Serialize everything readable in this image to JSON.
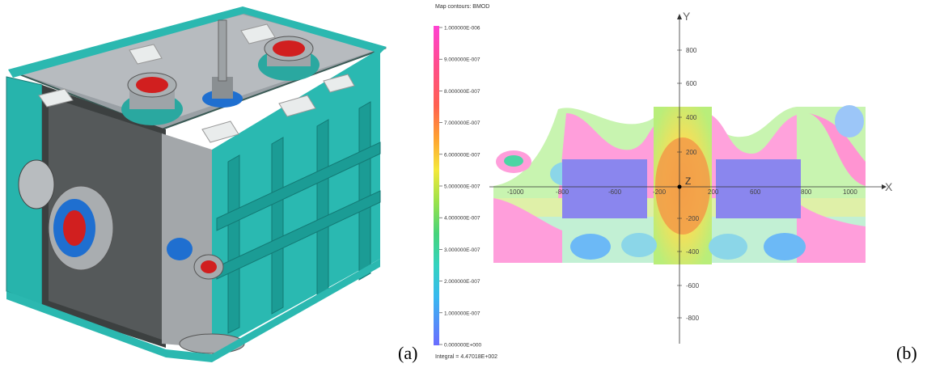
{
  "captions": {
    "a": "(a)",
    "b": "(b)"
  },
  "contour": {
    "title": "Map contours: BMOD",
    "integral": "Integral = 4.47018E+002",
    "scale_labels": [
      "1.000000E-006",
      "9.000000E-007",
      "8.000000E-007",
      "7.000000E-007",
      "6.000000E-007",
      "5.000000E-007",
      "4.000000E-007",
      "3.000000E-007",
      "2.000000E-007",
      "1.000000E-007",
      "0.000000E+000"
    ],
    "axis": {
      "x_name": "X",
      "y_name": "Y",
      "z_name": "Z",
      "x_ticks": [
        "-1000",
        "-800",
        "-600",
        "-200",
        "200",
        "600",
        "800",
        "1000"
      ],
      "y_ticks": [
        "800",
        "600",
        "400",
        "200",
        "-200",
        "-400",
        "-600",
        "-800"
      ]
    },
    "colors": {
      "low": "#6a6cff",
      "mid": "#46d37a",
      "high": "#ff42d2"
    }
  }
}
